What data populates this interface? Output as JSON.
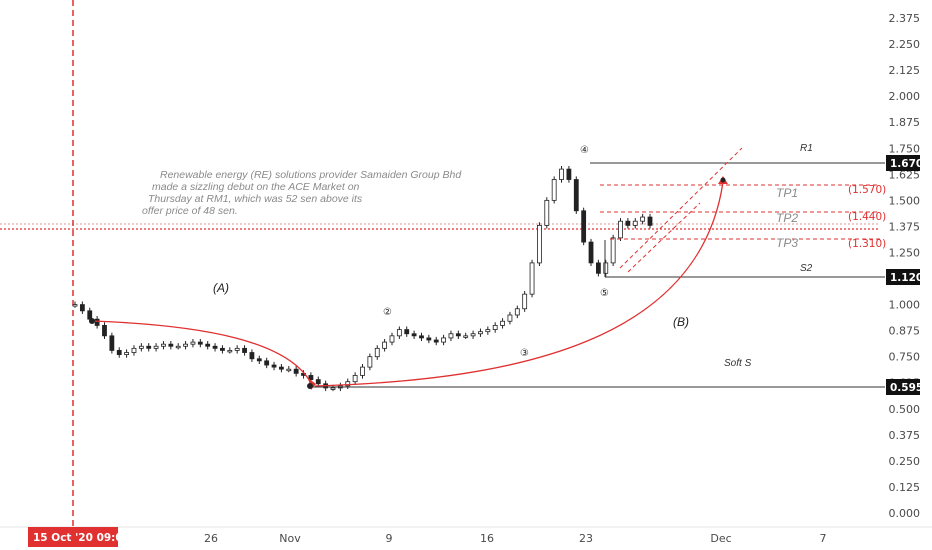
{
  "chart_data": {
    "type": "candlestick",
    "ylim": [
      0,
      2.375
    ],
    "y_ticks": [
      "2.375",
      "2.250",
      "2.125",
      "2.000",
      "1.875",
      "1.750",
      "1.625",
      "1.500",
      "1.375",
      "1.250",
      "1.125",
      "1.000",
      "0.875",
      "0.750",
      "0.625",
      "0.500",
      "0.375",
      "0.250",
      "0.125",
      "0.000"
    ],
    "x_ticks": [
      "26",
      "Nov",
      "9",
      "16",
      "23",
      "Dec",
      "7"
    ],
    "x_start_label": "15 Oct '20  09:00",
    "annotation": "Renewable energy (RE) solutions provider Samaiden Group Bhd made a sizzling debut on the ACE Market on Thursday at RM1, which was 52 sen above its offer price of 48 sen.",
    "levels": [
      {
        "label": "R1",
        "value": 1.67,
        "tag": "1.670"
      },
      {
        "label": "S2",
        "value": 1.12,
        "tag": "1.120"
      },
      {
        "label": "",
        "value": 0.595,
        "tag": "0.595"
      }
    ],
    "targets": [
      {
        "label": "TP1",
        "value": 1.57,
        "text": "(1.570)"
      },
      {
        "label": "TP2",
        "value": 1.44,
        "text": "(1.440)"
      },
      {
        "label": "TP3",
        "value": 1.31,
        "text": "(1.310)"
      }
    ],
    "wave_labels": [
      "(A)",
      "(B)",
      "Soft S"
    ],
    "wave_counts": [
      "②",
      "③",
      "④",
      "⑤"
    ],
    "close_approx": [
      1.0,
      0.97,
      0.93,
      0.9,
      0.85,
      0.78,
      0.76,
      0.77,
      0.79,
      0.8,
      0.79,
      0.8,
      0.81,
      0.8,
      0.8,
      0.81,
      0.82,
      0.81,
      0.8,
      0.79,
      0.78,
      0.78,
      0.79,
      0.77,
      0.74,
      0.73,
      0.71,
      0.7,
      0.69,
      0.69,
      0.67,
      0.66,
      0.64,
      0.62,
      0.6,
      0.6,
      0.61,
      0.63,
      0.66,
      0.7,
      0.75,
      0.79,
      0.82,
      0.85,
      0.88,
      0.86,
      0.85,
      0.84,
      0.83,
      0.82,
      0.84,
      0.86,
      0.85,
      0.85,
      0.86,
      0.87,
      0.88,
      0.9,
      0.92,
      0.95,
      0.98,
      1.05,
      1.2,
      1.38,
      1.5,
      1.6,
      1.65,
      1.6,
      1.45,
      1.3,
      1.2,
      1.15,
      1.2,
      1.32,
      1.4,
      1.38,
      1.4,
      1.42,
      1.38
    ]
  },
  "colors": {
    "accent_red": "#e03030",
    "candle": "#222222",
    "level_line": "#333333"
  }
}
